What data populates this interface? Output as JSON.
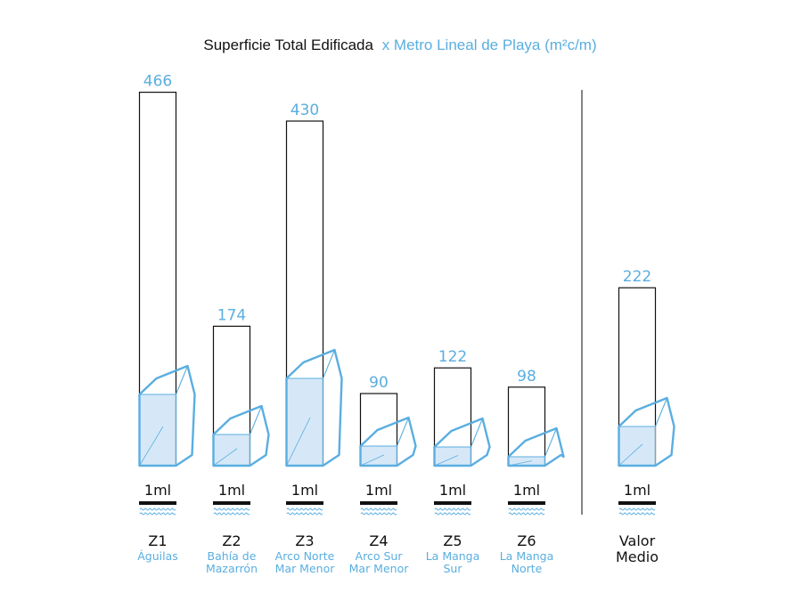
{
  "title": {
    "part1": "Superficie Total Edificada",
    "part2": "x Metro Lineal de Playa (m²c/m)"
  },
  "colors": {
    "accent": "#5aaee0",
    "outline": "#111111",
    "fill": "#d6e8f8",
    "water": "#5aaee0"
  },
  "chart_data": {
    "type": "bar",
    "title": "Superficie Total Edificada x Metro Lineal de Playa (m²c/m)",
    "unit_label": "1ml",
    "categories": [
      "Z1",
      "Z2",
      "Z3",
      "Z4",
      "Z5",
      "Z6",
      "Valor Medio"
    ],
    "zone_names": [
      [
        "Águilas"
      ],
      [
        "Bahía de",
        "Mazarrón"
      ],
      [
        "Arco Norte",
        "Mar Menor"
      ],
      [
        "Arco Sur",
        "Mar Menor"
      ],
      [
        "La Manga",
        "Sur"
      ],
      [
        "La Manga",
        "Norte"
      ],
      []
    ],
    "code_lines": [
      [
        "Z1"
      ],
      [
        "Z2"
      ],
      [
        "Z3"
      ],
      [
        "Z4"
      ],
      [
        "Z5"
      ],
      [
        "Z6"
      ],
      [
        "Valor",
        "Medio"
      ]
    ],
    "values": [
      466,
      174,
      430,
      90,
      122,
      98,
      222
    ],
    "value_labels": [
      "466",
      "174",
      "430",
      "90",
      "122",
      "98",
      "222"
    ]
  }
}
